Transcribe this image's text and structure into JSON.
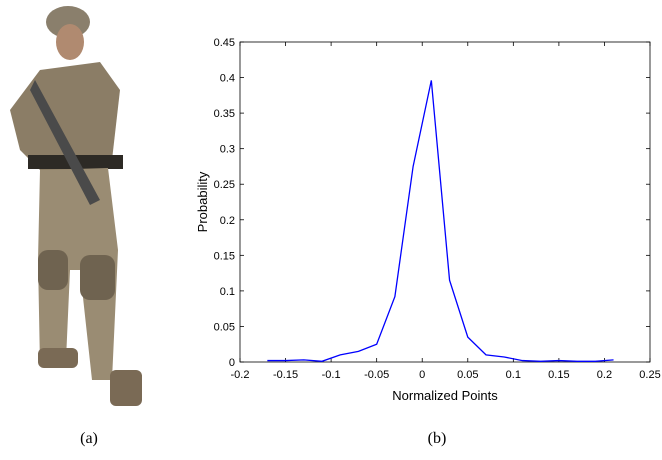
{
  "captions": [
    "(a)",
    "(b)"
  ],
  "chart_data": {
    "type": "line",
    "x_label": "Normalized Points",
    "y_label": "Probability",
    "x": [
      -0.17,
      -0.15,
      -0.13,
      -0.11,
      -0.09,
      -0.07,
      -0.05,
      -0.03,
      -0.01,
      0.01,
      0.03,
      0.05,
      0.07,
      0.09,
      0.11,
      0.13,
      0.15,
      0.17,
      0.19,
      0.21
    ],
    "values": [
      0.002,
      0.002,
      0.003,
      0.001,
      0.01,
      0.015,
      0.025,
      0.092,
      0.275,
      0.396,
      0.115,
      0.035,
      0.01,
      0.007,
      0.002,
      0.001,
      0.002,
      0.001,
      0.001,
      0.003
    ],
    "color": "#0000ff",
    "xlim": [
      -0.2,
      0.25
    ],
    "xticks": [
      -0.2,
      -0.15,
      -0.1,
      -0.05,
      0,
      0.05,
      0.1,
      0.15,
      0.2,
      0.25
    ],
    "ylim": [
      0,
      0.45
    ],
    "yticks": [
      0,
      0.05,
      0.1,
      0.15,
      0.2,
      0.25,
      0.3,
      0.35,
      0.4,
      0.45
    ],
    "grid": false
  }
}
